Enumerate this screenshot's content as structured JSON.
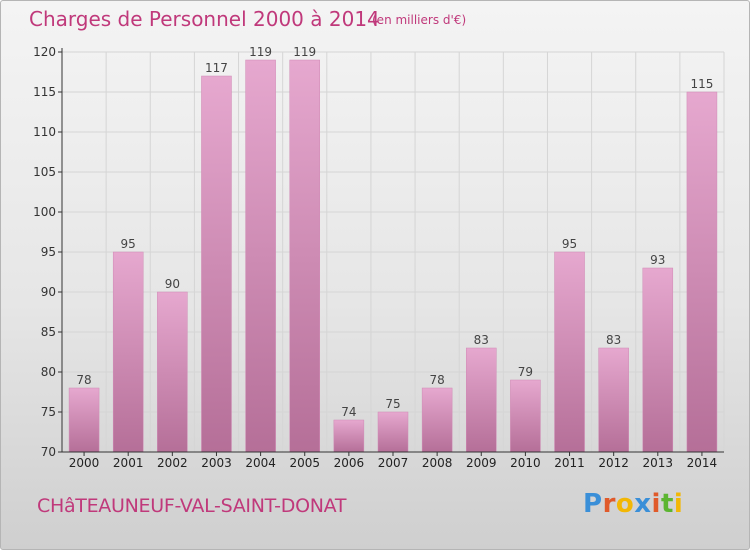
{
  "title": "Charges de Personnel 2000 à 2014",
  "unit_note": "(en milliers d'€)",
  "city": "CHâTEAUNEUF-VAL-SAINT-DONAT",
  "logo": {
    "text": "Proxiti",
    "letters": [
      "P",
      "r",
      "o",
      "x",
      "i",
      "t",
      "i"
    ],
    "colors": [
      "#3a8fd8",
      "#e05a2a",
      "#f2b705",
      "#3a8fd8",
      "#e05a2a",
      "#5cb531",
      "#f2b705"
    ]
  },
  "colors": {
    "title": "#c0397b",
    "bar_top": "#e6a8cf",
    "bar_bottom": "#b56f98",
    "bar_edge": "#d08ab5",
    "grid": "#d5d5d5",
    "axis": "#333333"
  },
  "chart_data": {
    "type": "bar",
    "title": "Charges de Personnel 2000 à 2014",
    "categories": [
      "2000",
      "2001",
      "2002",
      "2003",
      "2004",
      "2005",
      "2006",
      "2007",
      "2008",
      "2009",
      "2010",
      "2011",
      "2012",
      "2013",
      "2014"
    ],
    "values": [
      78,
      95,
      90,
      117,
      119,
      119,
      74,
      75,
      78,
      83,
      79,
      95,
      83,
      93,
      115
    ],
    "ylim": [
      70,
      120
    ],
    "yticks": [
      70,
      75,
      80,
      85,
      90,
      95,
      100,
      105,
      110,
      115,
      120
    ],
    "grid": true,
    "legend": "none"
  }
}
